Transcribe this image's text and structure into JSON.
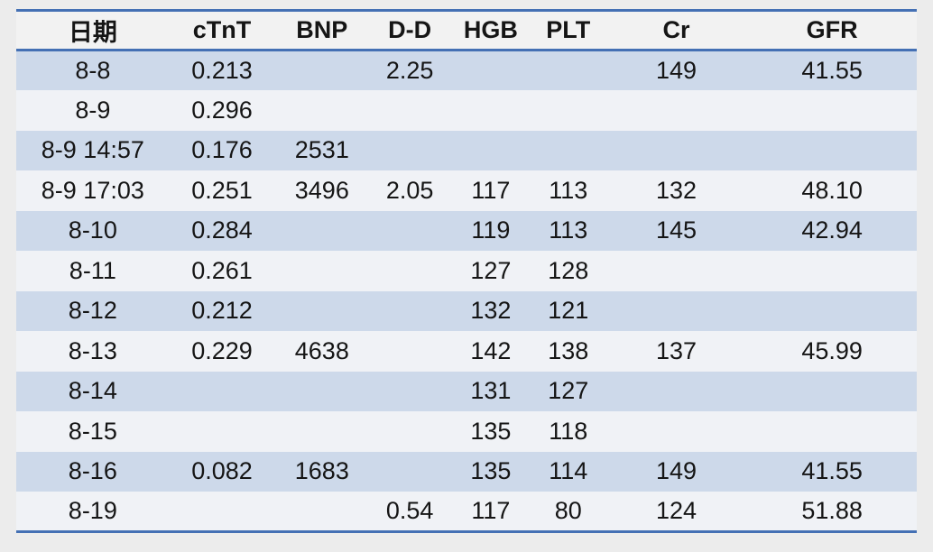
{
  "table": {
    "title": "lab-results",
    "columns": [
      "日期",
      "cTnT",
      "BNP",
      "D-D",
      "HGB",
      "PLT",
      "Cr",
      "GFR"
    ],
    "rows": [
      [
        "8-8",
        "0.213",
        "",
        "2.25",
        "",
        "",
        "149",
        "41.55"
      ],
      [
        "8-9",
        "0.296",
        "",
        "",
        "",
        "",
        "",
        ""
      ],
      [
        "8-9 14:57",
        "0.176",
        "2531",
        "",
        "",
        "",
        "",
        ""
      ],
      [
        "8-9 17:03",
        "0.251",
        "3496",
        "2.05",
        "117",
        "113",
        "132",
        "48.10"
      ],
      [
        "8-10",
        "0.284",
        "",
        "",
        "119",
        "113",
        "145",
        "42.94"
      ],
      [
        "8-11",
        "0.261",
        "",
        "",
        "127",
        "128",
        "",
        ""
      ],
      [
        "8-12",
        "0.212",
        "",
        "",
        "132",
        "121",
        "",
        ""
      ],
      [
        "8-13",
        "0.229",
        "4638",
        "",
        "142",
        "138",
        "137",
        "45.99"
      ],
      [
        "8-14",
        "",
        "",
        "",
        "131",
        "127",
        "",
        ""
      ],
      [
        "8-15",
        "",
        "",
        "",
        "135",
        "118",
        "",
        ""
      ],
      [
        "8-16",
        "0.082",
        "1683",
        "",
        "135",
        "114",
        "149",
        "41.55"
      ],
      [
        "8-19",
        "",
        "",
        "0.54",
        "117",
        "80",
        "124",
        "51.88"
      ]
    ],
    "column_widths_pct": [
      17.0,
      11.7,
      10.5,
      9.0,
      9.0,
      8.2,
      15.8,
      18.8
    ]
  },
  "chart_data": {
    "type": "table",
    "title": "",
    "columns": [
      "日期",
      "cTnT",
      "BNP",
      "D-D",
      "HGB",
      "PLT",
      "Cr",
      "GFR"
    ],
    "rows": [
      {
        "日期": "8-8",
        "cTnT": 0.213,
        "BNP": null,
        "D-D": 2.25,
        "HGB": null,
        "PLT": null,
        "Cr": 149,
        "GFR": 41.55
      },
      {
        "日期": "8-9",
        "cTnT": 0.296,
        "BNP": null,
        "D-D": null,
        "HGB": null,
        "PLT": null,
        "Cr": null,
        "GFR": null
      },
      {
        "日期": "8-9 14:57",
        "cTnT": 0.176,
        "BNP": 2531,
        "D-D": null,
        "HGB": null,
        "PLT": null,
        "Cr": null,
        "GFR": null
      },
      {
        "日期": "8-9 17:03",
        "cTnT": 0.251,
        "BNP": 3496,
        "D-D": 2.05,
        "HGB": 117,
        "PLT": 113,
        "Cr": 132,
        "GFR": 48.1
      },
      {
        "日期": "8-10",
        "cTnT": 0.284,
        "BNP": null,
        "D-D": null,
        "HGB": 119,
        "PLT": 113,
        "Cr": 145,
        "GFR": 42.94
      },
      {
        "日期": "8-11",
        "cTnT": 0.261,
        "BNP": null,
        "D-D": null,
        "HGB": 127,
        "PLT": 128,
        "Cr": null,
        "GFR": null
      },
      {
        "日期": "8-12",
        "cTnT": 0.212,
        "BNP": null,
        "D-D": null,
        "HGB": 132,
        "PLT": 121,
        "Cr": null,
        "GFR": null
      },
      {
        "日期": "8-13",
        "cTnT": 0.229,
        "BNP": 4638,
        "D-D": null,
        "HGB": 142,
        "PLT": 138,
        "Cr": 137,
        "GFR": 45.99
      },
      {
        "日期": "8-14",
        "cTnT": null,
        "BNP": null,
        "D-D": null,
        "HGB": 131,
        "PLT": 127,
        "Cr": null,
        "GFR": null
      },
      {
        "日期": "8-15",
        "cTnT": null,
        "BNP": null,
        "D-D": null,
        "HGB": 135,
        "PLT": 118,
        "Cr": null,
        "GFR": null
      },
      {
        "日期": "8-16",
        "cTnT": 0.082,
        "BNP": 1683,
        "D-D": null,
        "HGB": 135,
        "PLT": 114,
        "Cr": 149,
        "GFR": 41.55
      },
      {
        "日期": "8-19",
        "cTnT": null,
        "BNP": null,
        "D-D": 0.54,
        "HGB": 117,
        "PLT": 80,
        "Cr": 124,
        "GFR": 51.88
      }
    ],
    "layout": {
      "striped_rows": "odd rows (1st, 3rd, ...) light blue, even rows near-white",
      "borders": "thick blue rule above header, below header, and below last row; no vertical rules"
    }
  },
  "colors": {
    "border_blue": "#4470B4",
    "row_stripe": "#CDD9EA",
    "row_plain": "#F0F2F6",
    "header_bg": "#F2F2F2",
    "page_bg": "#ECECEC",
    "text": "#151515"
  }
}
